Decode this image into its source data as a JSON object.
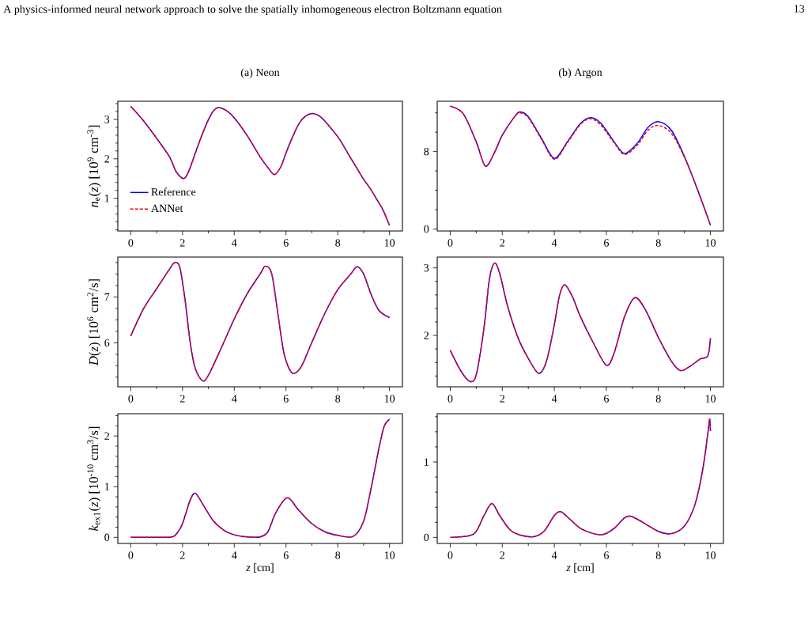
{
  "chart_data": [
    {
      "type": "line",
      "title": "(a) Neon",
      "ylabel": "*n*$_{e}$(*z*) [10$^{9}$ cm$^{-3}$]",
      "annotations": [
        "A physics-informed neural network approach to solve the spatially inhomogeneous electron Boltzmann equation",
        "13"
      ],
      "x": [
        0,
        0.5,
        1,
        1.5,
        1.75,
        2.05,
        2.25,
        2.5,
        2.75,
        3,
        3.2,
        3.4,
        3.7,
        4,
        4.5,
        5,
        5.3,
        5.55,
        5.8,
        6,
        6.25,
        6.5,
        6.75,
        7,
        7.25,
        7.5,
        8,
        8.25,
        8.5,
        8.75,
        9,
        9.25,
        9.5,
        9.75,
        10
      ],
      "series": [
        {
          "name": "Reference",
          "color": "#0000ff",
          "line_style": "solid",
          "values": [
            3.33,
            2.96,
            2.52,
            2.05,
            1.68,
            1.5,
            1.7,
            2.15,
            2.6,
            2.99,
            3.22,
            3.3,
            3.22,
            3.04,
            2.59,
            2.05,
            1.78,
            1.6,
            1.8,
            2.15,
            2.55,
            2.89,
            3.08,
            3.15,
            3.1,
            2.96,
            2.56,
            2.3,
            2.02,
            1.75,
            1.48,
            1.25,
            0.98,
            0.7,
            0.31
          ]
        },
        {
          "name": "ANNet",
          "color": "#ff0000",
          "line_style": "dashed",
          "values": [
            3.33,
            2.96,
            2.52,
            2.05,
            1.68,
            1.5,
            1.7,
            2.15,
            2.6,
            2.99,
            3.22,
            3.3,
            3.22,
            3.04,
            2.59,
            2.05,
            1.78,
            1.6,
            1.8,
            2.15,
            2.55,
            2.89,
            3.08,
            3.15,
            3.1,
            2.96,
            2.56,
            2.3,
            2.02,
            1.75,
            1.48,
            1.25,
            0.98,
            0.7,
            0.31
          ]
        }
      ],
      "xlim": [
        -0.5,
        10.5
      ],
      "xticks": [
        0,
        {
          "value": 1,
          "label": null
        },
        2,
        {
          "value": 3,
          "label": null
        },
        4,
        {
          "value": 5,
          "label": null
        },
        6,
        {
          "value": 7,
          "label": null
        },
        8,
        {
          "value": 9,
          "label": null
        },
        10
      ],
      "ylim": [
        0.17,
        3.46
      ],
      "yticks": [
        {
          "value": 0.2,
          "label": null
        },
        {
          "value": 0.4,
          "label": null
        },
        {
          "value": 0.6,
          "label": null
        },
        {
          "value": 0.8,
          "label": null
        },
        1,
        {
          "value": 1.2,
          "label": null
        },
        {
          "value": 1.4,
          "label": null
        },
        {
          "value": 1.6,
          "label": null
        },
        {
          "value": 1.8,
          "label": null
        },
        2,
        {
          "value": 2.2,
          "label": null
        },
        {
          "value": 2.4,
          "label": null
        },
        {
          "value": 2.6,
          "label": null
        },
        {
          "value": 2.8,
          "label": null
        },
        3,
        {
          "value": 3.2,
          "label": null
        },
        {
          "value": 3.4,
          "label": null
        }
      ],
      "legend": "bottom left",
      "marker": "none"
    },
    {
      "type": "line",
      "title": "(b) Argon",
      "x": [
        0,
        0.5,
        1,
        1.35,
        1.7,
        2,
        2.5,
        2.7,
        3,
        3.5,
        4,
        4.5,
        5,
        5.4,
        5.8,
        6.3,
        6.7,
        7.2,
        7.6,
        8,
        8.5,
        9,
        9.5,
        10
      ],
      "series": [
        {
          "color": "#0000ff",
          "line_style": "solid",
          "values": [
            12.7,
            11.9,
            9.0,
            6.5,
            7.9,
            9.7,
            11.7,
            12.1,
            11.6,
            9.4,
            7.3,
            9.0,
            10.9,
            11.5,
            10.9,
            9.0,
            7.8,
            8.9,
            10.5,
            11.1,
            10.2,
            7.5,
            4.1,
            0.4
          ]
        },
        {
          "color": "#ff0000",
          "line_style": "dashed",
          "values": [
            12.7,
            11.9,
            9.0,
            6.5,
            7.9,
            9.7,
            11.7,
            12.0,
            11.5,
            9.3,
            7.2,
            8.9,
            10.8,
            11.4,
            10.7,
            8.9,
            7.7,
            8.7,
            10.2,
            10.7,
            9.9,
            7.4,
            4.1,
            0.4
          ]
        }
      ],
      "xlim": [
        -0.5,
        10.5
      ],
      "xticks": [
        0,
        {
          "value": 1,
          "label": null
        },
        2,
        {
          "value": 3,
          "label": null
        },
        4,
        {
          "value": 5,
          "label": null
        },
        6,
        {
          "value": 7,
          "label": null
        },
        8,
        {
          "value": 9,
          "label": null
        },
        10
      ],
      "ylim": [
        -0.2,
        13.2
      ],
      "yticks": [
        0,
        {
          "value": 2,
          "label": null
        },
        {
          "value": 4,
          "label": null
        },
        {
          "value": 6,
          "label": null
        },
        8,
        {
          "value": 10,
          "label": null
        },
        {
          "value": 12,
          "label": null
        }
      ],
      "marker": "none"
    },
    {
      "type": "line",
      "ylabel": "*D*(*z*) [10$^{6}$ cm$^{2}$/s]",
      "x": [
        0,
        0.5,
        1,
        1.5,
        1.7,
        1.9,
        2.1,
        2.3,
        2.5,
        2.78,
        3,
        3.5,
        4,
        4.5,
        5,
        5.2,
        5.45,
        5.7,
        5.9,
        6.1,
        6.3,
        6.6,
        7,
        7.5,
        8,
        8.5,
        8.75,
        9,
        9.3,
        9.6,
        10
      ],
      "series": [
        {
          "color": "#0000ff",
          "line_style": "solid",
          "values": [
            6.15,
            6.75,
            7.18,
            7.61,
            7.75,
            7.64,
            6.93,
            6.0,
            5.43,
            5.17,
            5.29,
            5.89,
            6.52,
            7.07,
            7.5,
            7.67,
            7.5,
            6.58,
            5.83,
            5.46,
            5.33,
            5.49,
            6.01,
            6.64,
            7.16,
            7.5,
            7.66,
            7.5,
            7.04,
            6.7,
            6.55
          ]
        },
        {
          "color": "#ff0000",
          "line_style": "dashed",
          "values": [
            6.15,
            6.75,
            7.18,
            7.61,
            7.75,
            7.64,
            6.93,
            6.0,
            5.43,
            5.17,
            5.29,
            5.89,
            6.52,
            7.07,
            7.5,
            7.67,
            7.5,
            6.58,
            5.83,
            5.46,
            5.33,
            5.49,
            6.01,
            6.64,
            7.16,
            7.5,
            7.66,
            7.5,
            7.04,
            6.7,
            6.55
          ]
        }
      ],
      "xlim": [
        -0.5,
        10.5
      ],
      "xticks": [
        0,
        {
          "value": 1,
          "label": null
        },
        2,
        {
          "value": 3,
          "label": null
        },
        4,
        {
          "value": 5,
          "label": null
        },
        6,
        {
          "value": 7,
          "label": null
        },
        8,
        {
          "value": 9,
          "label": null
        },
        10
      ],
      "ylim": [
        5.04,
        7.87
      ],
      "yticks": [
        {
          "value": 5.25,
          "label": null
        },
        {
          "value": 5.5,
          "label": null
        },
        {
          "value": 5.75,
          "label": null
        },
        6,
        {
          "value": 6.25,
          "label": null
        },
        {
          "value": 6.5,
          "label": null
        },
        {
          "value": 6.75,
          "label": null
        },
        7,
        {
          "value": 7.25,
          "label": null
        },
        {
          "value": 7.5,
          "label": null
        },
        {
          "value": 7.75,
          "label": null
        }
      ],
      "marker": "none"
    },
    {
      "type": "line",
      "x": [
        0,
        0.4,
        0.75,
        1,
        1.3,
        1.5,
        1.7,
        1.9,
        2.2,
        2.6,
        3,
        3.4,
        3.7,
        4,
        4.2,
        4.4,
        4.7,
        5,
        5.5,
        6,
        6.3,
        6.7,
        7.1,
        7.5,
        8,
        8.5,
        8.85,
        9.2,
        9.6,
        9.9,
        10
      ],
      "series": [
        {
          "color": "#0000ff",
          "line_style": "solid",
          "values": [
            1.78,
            1.48,
            1.32,
            1.42,
            2.12,
            2.82,
            3.07,
            2.92,
            2.44,
            1.97,
            1.66,
            1.44,
            1.62,
            2.16,
            2.59,
            2.75,
            2.57,
            2.28,
            1.89,
            1.56,
            1.74,
            2.28,
            2.56,
            2.38,
            1.97,
            1.62,
            1.48,
            1.54,
            1.65,
            1.7,
            1.96
          ]
        },
        {
          "color": "#ff0000",
          "line_style": "dashed",
          "values": [
            1.78,
            1.48,
            1.32,
            1.42,
            2.12,
            2.82,
            3.07,
            2.92,
            2.44,
            1.97,
            1.66,
            1.44,
            1.62,
            2.16,
            2.59,
            2.75,
            2.57,
            2.28,
            1.89,
            1.56,
            1.74,
            2.28,
            2.56,
            2.38,
            1.97,
            1.62,
            1.48,
            1.54,
            1.65,
            1.7,
            1.96
          ]
        }
      ],
      "xlim": [
        -0.5,
        10.5
      ],
      "xticks": [
        0,
        {
          "value": 1,
          "label": null
        },
        2,
        {
          "value": 3,
          "label": null
        },
        4,
        {
          "value": 5,
          "label": null
        },
        6,
        {
          "value": 7,
          "label": null
        },
        8,
        {
          "value": 9,
          "label": null
        },
        10
      ],
      "ylim": [
        1.24,
        3.16
      ],
      "yticks": [
        {
          "value": 1.4,
          "label": null
        },
        {
          "value": 1.6,
          "label": null
        },
        {
          "value": 1.8,
          "label": null
        },
        2,
        {
          "value": 2.2,
          "label": null
        },
        {
          "value": 2.4,
          "label": null
        },
        {
          "value": 2.6,
          "label": null
        },
        {
          "value": 2.8,
          "label": null
        },
        3
      ],
      "marker": "none"
    },
    {
      "type": "line",
      "ylabel": "*k*$_{ex1}$(*z*) [10$^{-10}$ cm$^{3}$/s]",
      "xlabel": "*z* [cm]",
      "x": [
        0,
        1,
        1.6,
        1.8,
        2,
        2.3,
        2.5,
        2.8,
        3.2,
        3.6,
        4,
        4.5,
        5,
        5.3,
        5.6,
        6.05,
        6.5,
        7,
        7.5,
        8,
        8.6,
        9,
        9.3,
        9.6,
        9.8,
        10
      ],
      "series": [
        {
          "color": "#0000ff",
          "line_style": "solid",
          "values": [
            0,
            0,
            0.01,
            0.09,
            0.27,
            0.74,
            0.87,
            0.64,
            0.32,
            0.14,
            0.05,
            0.01,
            0.01,
            0.11,
            0.48,
            0.78,
            0.53,
            0.27,
            0.11,
            0.04,
            0.02,
            0.32,
            1.0,
            1.78,
            2.2,
            2.33
          ]
        },
        {
          "color": "#ff0000",
          "line_style": "dashed",
          "values": [
            0,
            0,
            0.01,
            0.09,
            0.27,
            0.74,
            0.87,
            0.64,
            0.32,
            0.14,
            0.05,
            0.01,
            0.01,
            0.11,
            0.48,
            0.78,
            0.53,
            0.27,
            0.11,
            0.04,
            0.02,
            0.32,
            1.0,
            1.78,
            2.2,
            2.33
          ]
        }
      ],
      "xlim": [
        -0.5,
        10.5
      ],
      "xticks": [
        0,
        {
          "value": 1,
          "label": null
        },
        2,
        {
          "value": 3,
          "label": null
        },
        4,
        {
          "value": 5,
          "label": null
        },
        6,
        {
          "value": 7,
          "label": null
        },
        8,
        {
          "value": 9,
          "label": null
        },
        10
      ],
      "ylim": [
        -0.12,
        2.44
      ],
      "yticks": [
        0,
        {
          "value": 0.2,
          "label": null
        },
        {
          "value": 0.4,
          "label": null
        },
        {
          "value": 0.6,
          "label": null
        },
        {
          "value": 0.8,
          "label": null
        },
        1,
        {
          "value": 1.2,
          "label": null
        },
        {
          "value": 1.4,
          "label": null
        },
        {
          "value": 1.6,
          "label": null
        },
        {
          "value": 1.8,
          "label": null
        },
        2,
        {
          "value": 2.2,
          "label": null
        },
        {
          "value": 2.4,
          "label": null
        }
      ],
      "marker": "none"
    },
    {
      "type": "line",
      "xlabel": "*z* [cm]",
      "x": [
        0,
        0.7,
        1,
        1.3,
        1.6,
        1.9,
        2.3,
        2.7,
        3.2,
        3.6,
        4,
        4.25,
        4.6,
        5,
        5.5,
        5.9,
        6.3,
        6.7,
        6.95,
        7.4,
        8,
        8.5,
        9,
        9.4,
        9.7,
        9.9,
        9.97,
        10
      ],
      "series": [
        {
          "color": "#0000ff",
          "line_style": "solid",
          "values": [
            0,
            0.02,
            0.08,
            0.29,
            0.45,
            0.29,
            0.1,
            0.03,
            0.01,
            0.08,
            0.29,
            0.34,
            0.24,
            0.12,
            0.05,
            0.04,
            0.12,
            0.26,
            0.28,
            0.2,
            0.08,
            0.05,
            0.15,
            0.43,
            0.89,
            1.38,
            1.57,
            1.41
          ]
        },
        {
          "color": "#ff0000",
          "line_style": "dashed",
          "values": [
            0,
            0.02,
            0.08,
            0.29,
            0.45,
            0.29,
            0.1,
            0.03,
            0.01,
            0.08,
            0.29,
            0.34,
            0.24,
            0.12,
            0.05,
            0.04,
            0.12,
            0.26,
            0.28,
            0.2,
            0.08,
            0.05,
            0.15,
            0.43,
            0.89,
            1.38,
            1.57,
            1.41
          ]
        }
      ],
      "xlim": [
        -0.5,
        10.5
      ],
      "xticks": [
        0,
        {
          "value": 1,
          "label": null
        },
        2,
        {
          "value": 3,
          "label": null
        },
        4,
        {
          "value": 5,
          "label": null
        },
        6,
        {
          "value": 7,
          "label": null
        },
        8,
        {
          "value": 9,
          "label": null
        },
        10
      ],
      "ylim": [
        -0.08,
        1.64
      ],
      "yticks": [
        0,
        {
          "value": 0.2,
          "label": null
        },
        {
          "value": 0.4,
          "label": null
        },
        {
          "value": 0.6,
          "label": null
        },
        {
          "value": 0.8,
          "label": null
        },
        1,
        {
          "value": 1.2,
          "label": null
        },
        {
          "value": 1.4,
          "label": null
        },
        {
          "value": 1.6,
          "label": null
        }
      ],
      "marker": "none"
    }
  ]
}
